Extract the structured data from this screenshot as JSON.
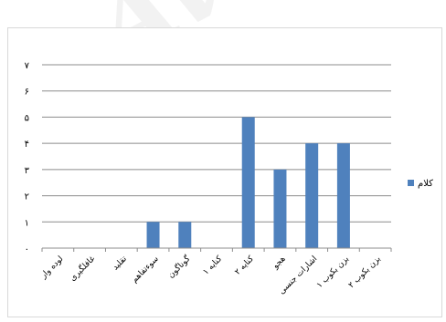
{
  "watermark": "Avv",
  "chart_data": {
    "type": "bar",
    "categories": [
      "لوده وار",
      "غافلگیری",
      "تقلید",
      "سوءتفاهم",
      "گوناگون",
      "کنایه ۱",
      "کنایه ۲",
      "هجو",
      "اشارات جنسی",
      "بزن بکوب ۱",
      "بزن بکوب ۲"
    ],
    "series": [
      {
        "name": "کلام",
        "values": [
          0,
          0,
          0,
          1,
          1,
          0,
          5,
          3,
          4,
          4,
          0
        ],
        "color": "#4f81bd"
      }
    ],
    "yticks": [
      "۰",
      "۱",
      "۲",
      "۳",
      "۴",
      "۵",
      "۶",
      "۷"
    ],
    "ylim": [
      0,
      7
    ],
    "grid": true,
    "legend_position": "right"
  }
}
